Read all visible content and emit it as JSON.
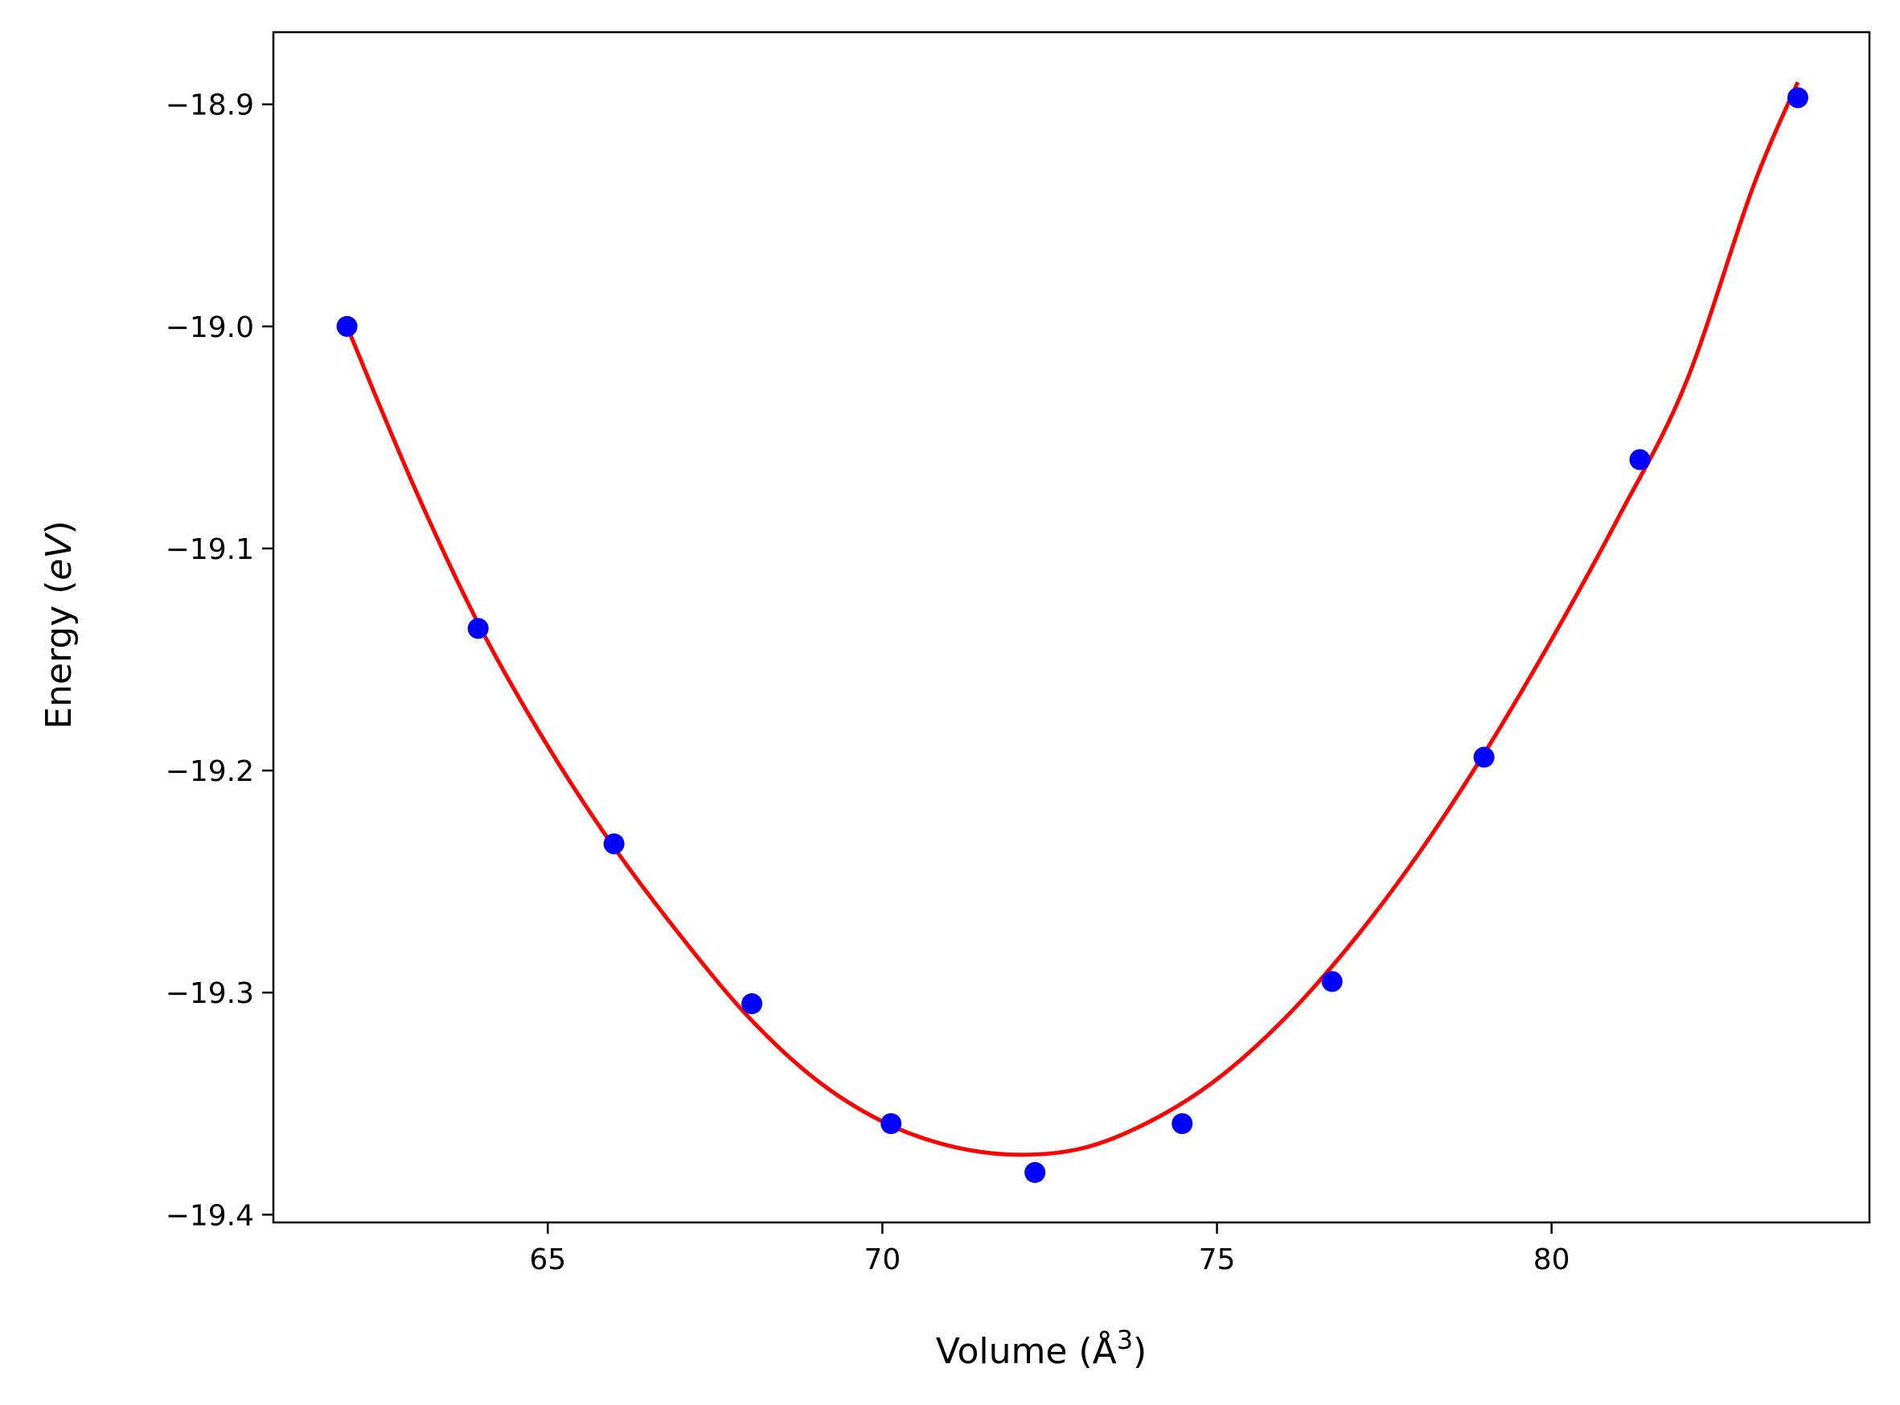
{
  "chart_data": {
    "type": "scatter",
    "title": "",
    "xlabel": "Volume (Å³)",
    "xlabel_parts": {
      "prefix": "Volume (",
      "symbol": "Å",
      "exponent": "3",
      "suffix": ")"
    },
    "ylabel": "Energy (eV)",
    "ylabel_parts": {
      "prefix": "Energy (",
      "italic": "eV",
      "suffix": ")"
    },
    "xlim": [
      60.9,
      84.75
    ],
    "ylim": [
      -19.4035,
      -18.8675
    ],
    "x_ticks": [
      65,
      70,
      75,
      80
    ],
    "x_tick_labels": [
      "65",
      "70",
      "75",
      "80"
    ],
    "y_ticks": [
      -18.9,
      -19.0,
      -19.1,
      -19.2,
      -19.3,
      -19.4
    ],
    "y_tick_labels": [
      "−18.9",
      "−19.0",
      "−19.1",
      "−19.2",
      "−19.3",
      "−19.4"
    ],
    "grid": false,
    "legend": "none",
    "series": [
      {
        "kind": "points",
        "color": "#0000ff",
        "x": [
          62.0,
          63.96,
          65.99,
          68.05,
          70.13,
          72.28,
          74.48,
          76.72,
          78.99,
          81.32,
          83.68
        ],
        "y": [
          -19.0,
          -19.136,
          -19.233,
          -19.305,
          -19.359,
          -19.381,
          -19.359,
          -19.295,
          -19.194,
          -19.06,
          -18.897
        ]
      },
      {
        "kind": "fit-curve",
        "color": "#ff0000",
        "x": [
          62.0,
          63.0,
          64.0,
          65.0,
          66.0,
          67.0,
          68.0,
          69.0,
          70.0,
          71.0,
          72.0,
          73.0,
          74.0,
          75.0,
          76.0,
          77.0,
          78.0,
          79.0,
          80.0,
          81.0,
          82.0,
          83.0,
          83.68
        ],
        "y": [
          -19.0,
          -19.072,
          -19.136,
          -19.189,
          -19.235,
          -19.275,
          -19.311,
          -19.339,
          -19.358,
          -19.369,
          -19.373,
          -19.37,
          -19.358,
          -19.339,
          -19.312,
          -19.278,
          -19.238,
          -19.192,
          -19.141,
          -19.086,
          -19.026,
          -18.938,
          -18.89
        ]
      }
    ]
  }
}
